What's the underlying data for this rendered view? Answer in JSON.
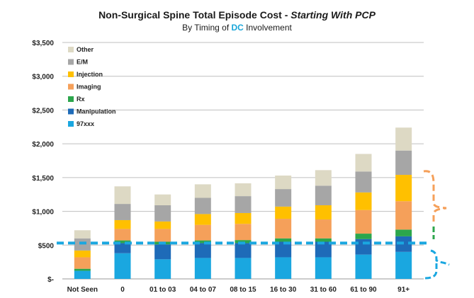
{
  "chart_data": {
    "type": "bar",
    "stacked": true,
    "title_main": "Non-Surgical Spine Total Episode Cost - ",
    "title_italic": "Starting With PCP",
    "subtitle_pre": "By Timing of ",
    "subtitle_highlight": "DC",
    "subtitle_post": " Involvement",
    "xlabel": "",
    "ylabel": "",
    "ylim": [
      0,
      3500
    ],
    "yticks": [
      0,
      500,
      1000,
      1500,
      2000,
      2500,
      3000,
      3500
    ],
    "ytick_labels": [
      "$-",
      "$500",
      "$1,000",
      "$1,500",
      "$2,000",
      "$2,500",
      "$3,000",
      "$3,500"
    ],
    "grid": true,
    "legend_position": "top-left",
    "categories": [
      "Not Seen",
      "0",
      "01 to 03",
      "04 to 07",
      "08 to 15",
      "16 to 30",
      "31 to 60",
      "61 to 90",
      "91+"
    ],
    "series": [
      {
        "name": "97xxx",
        "color": "#1aa7e0",
        "values": [
          120,
          380,
          290,
          310,
          310,
          320,
          320,
          360,
          400
        ]
      },
      {
        "name": "Manipulation",
        "color": "#1e6bb8",
        "values": [
          0,
          150,
          220,
          220,
          220,
          230,
          230,
          230,
          230
        ]
      },
      {
        "name": "Rx",
        "color": "#2ca64c",
        "values": [
          30,
          40,
          40,
          40,
          45,
          50,
          50,
          80,
          100
        ]
      },
      {
        "name": "Imaging",
        "color": "#f5a05a",
        "values": [
          170,
          170,
          190,
          230,
          240,
          290,
          280,
          350,
          420
        ]
      },
      {
        "name": "Injection",
        "color": "#ffc000",
        "values": [
          100,
          130,
          110,
          160,
          160,
          180,
          210,
          260,
          390
        ]
      },
      {
        "name": "E/M",
        "color": "#a6a6a6",
        "values": [
          180,
          240,
          240,
          240,
          250,
          260,
          290,
          310,
          360
        ]
      },
      {
        "name": "Other",
        "color": "#ddd9c4",
        "values": [
          120,
          260,
          160,
          200,
          190,
          200,
          230,
          260,
          340
        ]
      }
    ],
    "reference_line": {
      "value": 530,
      "color": "#1aa7e0",
      "style": "dashed"
    },
    "annotation_colors": {
      "upper_brace": "#f5a05a",
      "middle_brace": "#2ca64c",
      "lower_brace": "#1aa7e0"
    }
  }
}
